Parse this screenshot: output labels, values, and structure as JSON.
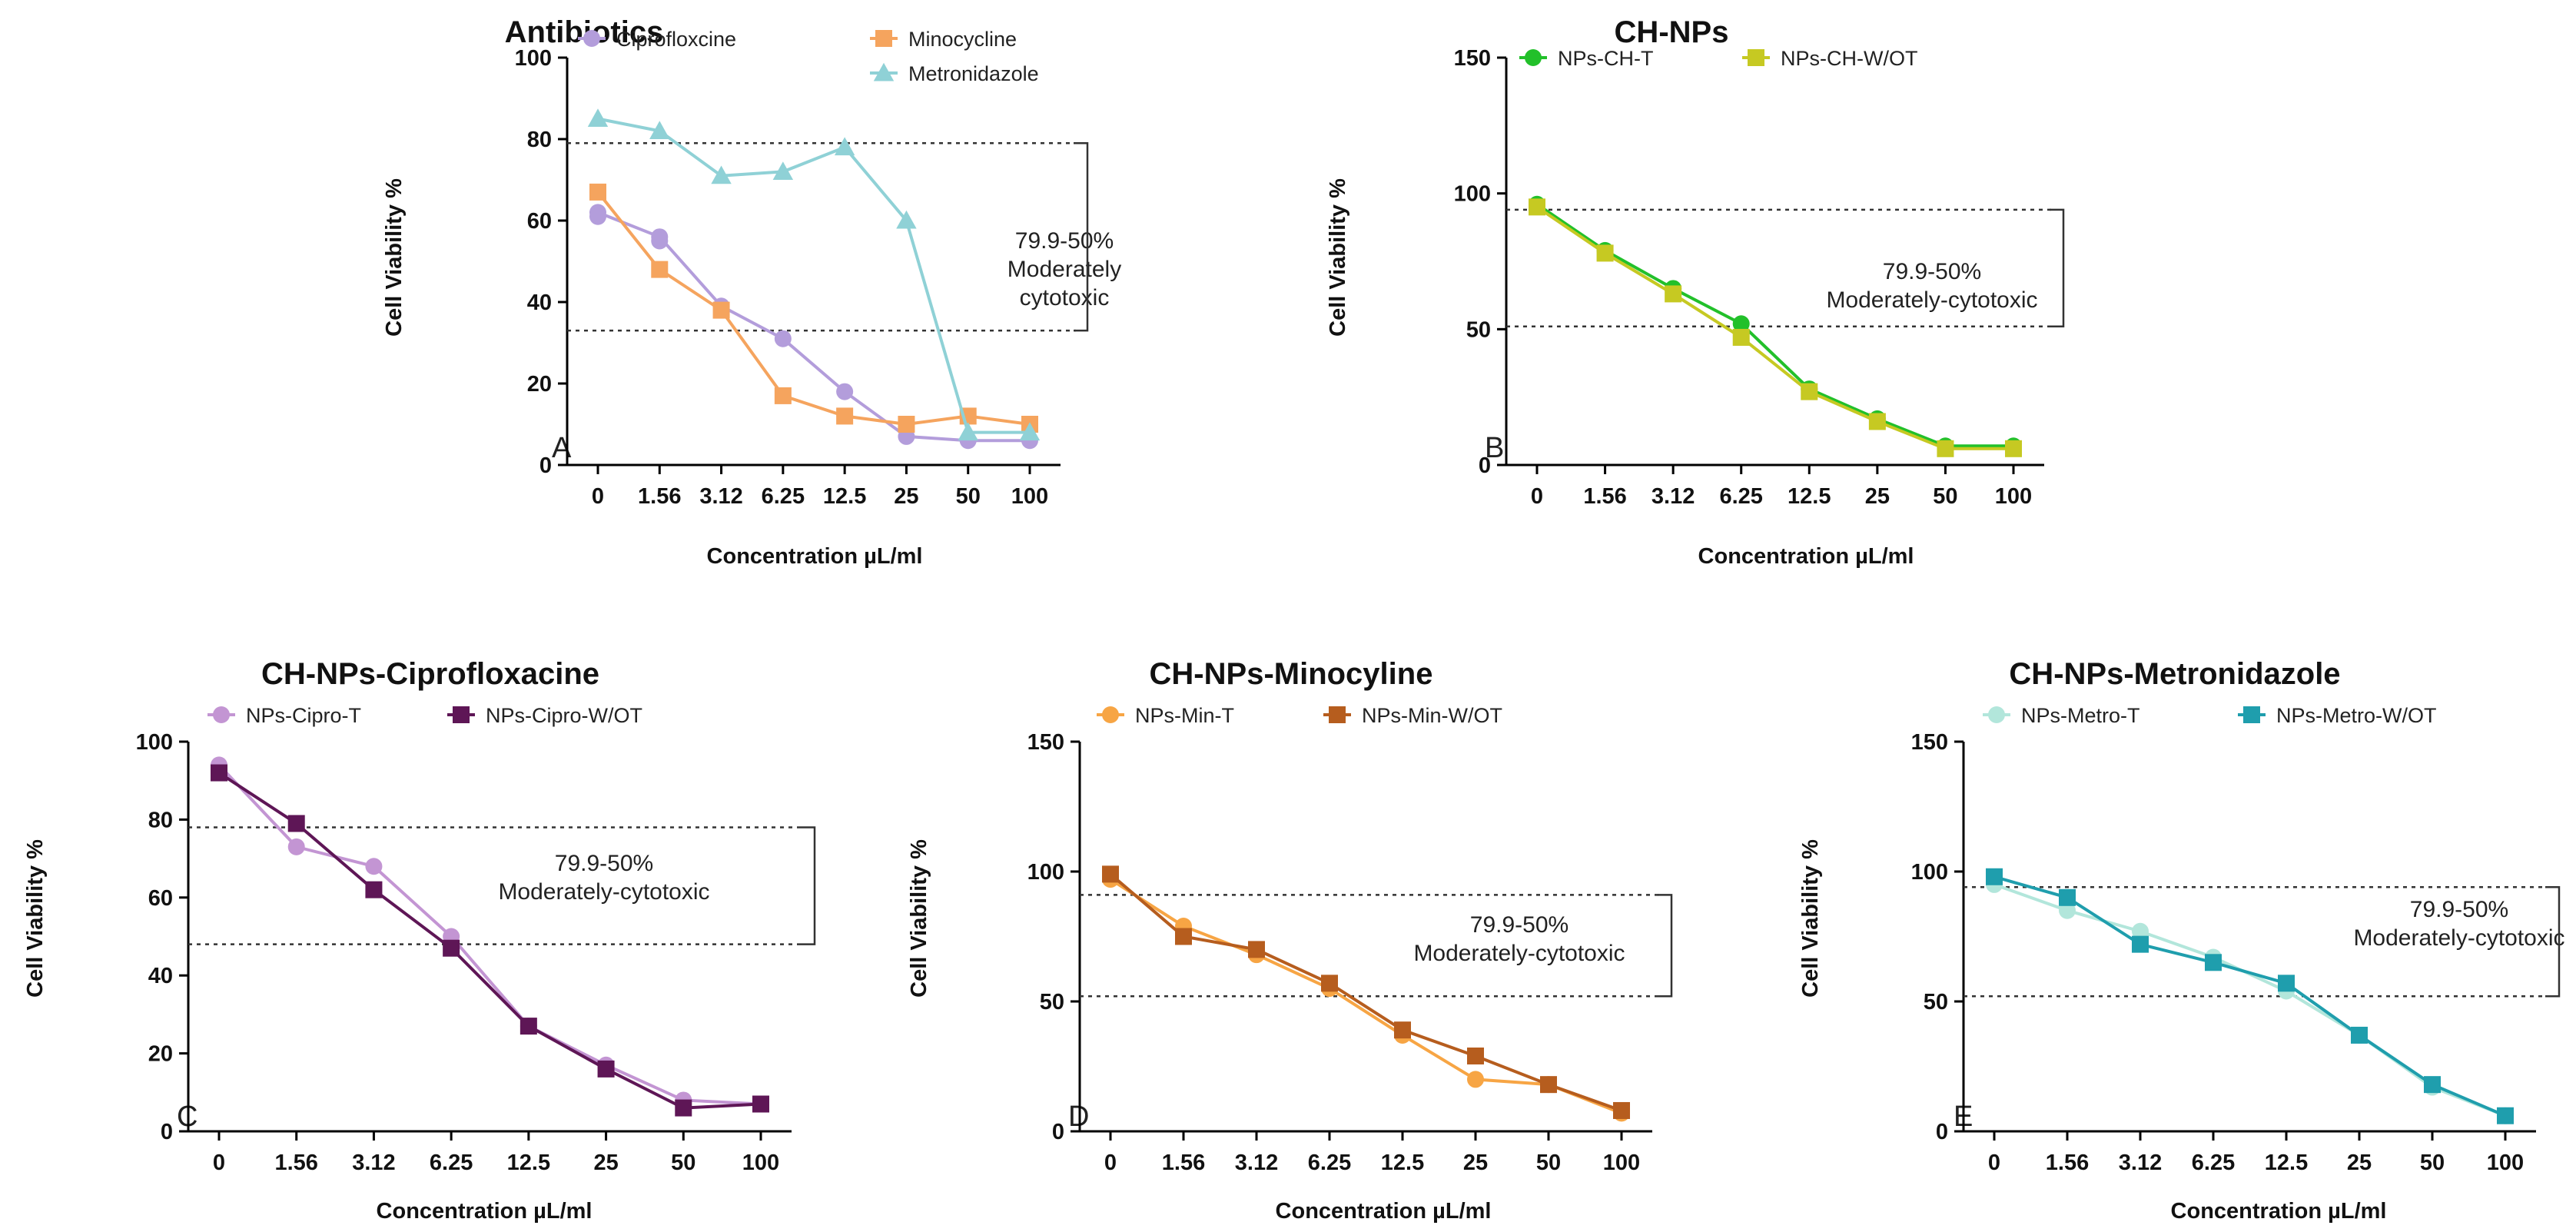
{
  "chart_data": [
    {
      "type": "line",
      "panel_label": "A",
      "title": "Antibiotics",
      "xlabel": "Concentration µL/ml",
      "ylabel": "Cell Viability %",
      "categories": [
        "0",
        "1.56",
        "3.12",
        "6.25",
        "12.5",
        "25",
        "50",
        "100"
      ],
      "ylim": [
        0,
        100
      ],
      "yticks": [
        "0",
        "20",
        "40",
        "60",
        "80",
        "100"
      ],
      "band": [
        79,
        33
      ],
      "annotation": [
        "79.9-50%",
        "Moderately",
        "cytotoxic"
      ],
      "series": [
        {
          "name": "Ciprofloxcine",
          "color": "#b39ddb",
          "marker": "circle",
          "values": [
            62,
            56,
            39,
            31,
            18,
            7,
            6,
            6
          ],
          "values_b": [
            61,
            55
          ]
        },
        {
          "name": "Minocycline",
          "color": "#f5a45e",
          "marker": "square",
          "values": [
            67,
            48,
            38,
            17,
            12,
            10,
            12,
            10
          ]
        },
        {
          "name": "Metronidazole",
          "color": "#8fd1d6",
          "marker": "triangle",
          "values": [
            85,
            82,
            71,
            72,
            78,
            60,
            8,
            8
          ]
        }
      ]
    },
    {
      "type": "line",
      "panel_label": "B",
      "title": "CH-NPs",
      "xlabel": "Concentration µL/ml",
      "ylabel": "Cell Viability %",
      "categories": [
        "0",
        "1.56",
        "3.12",
        "6.25",
        "12.5",
        "25",
        "50",
        "100"
      ],
      "ylim": [
        0,
        150
      ],
      "yticks": [
        "0",
        "50",
        "100",
        "150"
      ],
      "band": [
        94,
        51
      ],
      "annotation": [
        "79.9-50%",
        "Moderately-cytotoxic"
      ],
      "series": [
        {
          "name": "NPs-CH-T",
          "color": "#22c02a",
          "marker": "circle",
          "values": [
            96,
            79,
            65,
            52,
            28,
            17,
            7,
            7
          ]
        },
        {
          "name": "NPs-CH-W/OT",
          "color": "#c6c922",
          "marker": "square",
          "values": [
            95,
            78,
            63,
            47,
            27,
            16,
            6,
            6
          ]
        }
      ]
    },
    {
      "type": "line",
      "panel_label": "C",
      "title": "CH-NPs-Ciprofloxacine",
      "xlabel": "Concentration µL/ml",
      "ylabel": "Cell Viability %",
      "categories": [
        "0",
        "1.56",
        "3.12",
        "6.25",
        "12.5",
        "25",
        "50",
        "100"
      ],
      "ylim": [
        0,
        100
      ],
      "yticks": [
        "0",
        "20",
        "40",
        "60",
        "80",
        "100"
      ],
      "band": [
        78,
        48
      ],
      "annotation": [
        "79.9-50%",
        "Moderately-cytotoxic"
      ],
      "series": [
        {
          "name": "NPs-Cipro-T",
          "color": "#c395d3",
          "marker": "circle",
          "values": [
            94,
            73,
            68,
            50,
            27,
            17,
            8,
            7
          ]
        },
        {
          "name": "NPs-Cipro-W/OT",
          "color": "#5e1656",
          "marker": "square",
          "values": [
            92,
            79,
            62,
            47,
            27,
            16,
            6,
            7
          ]
        }
      ]
    },
    {
      "type": "line",
      "panel_label": "D",
      "title": "CH-NPs-Minocyline",
      "xlabel": "Concentration µL/ml",
      "ylabel": "Cell Viability %",
      "categories": [
        "0",
        "1.56",
        "3.12",
        "6.25",
        "12.5",
        "25",
        "50",
        "100"
      ],
      "ylim": [
        0,
        150
      ],
      "yticks": [
        "0",
        "50",
        "100",
        "150"
      ],
      "band": [
        91,
        52
      ],
      "annotation": [
        "79.9-50%",
        "Moderately-cytotoxic"
      ],
      "series": [
        {
          "name": "NPs-Min-T",
          "color": "#f7a544",
          "marker": "circle",
          "values": [
            97,
            79,
            68,
            55,
            37,
            20,
            18,
            7
          ]
        },
        {
          "name": "NPs-Min-W/OT",
          "color": "#b65d1e",
          "marker": "square",
          "values": [
            99,
            75,
            70,
            57,
            39,
            29,
            18,
            8
          ]
        }
      ]
    },
    {
      "type": "line",
      "panel_label": "E",
      "title": "CH-NPs-Metronidazole",
      "xlabel": "Concentration µL/ml",
      "ylabel": "Cell Viability %",
      "categories": [
        "0",
        "1.56",
        "3.12",
        "6.25",
        "12.5",
        "25",
        "50",
        "100"
      ],
      "ylim": [
        0,
        150
      ],
      "yticks": [
        "0",
        "50",
        "100",
        "150"
      ],
      "band": [
        94,
        52
      ],
      "annotation": [
        "79.9-50%",
        "Moderately-cytotoxic"
      ],
      "series": [
        {
          "name": "NPs-Metro-T",
          "color": "#b2e6db",
          "marker": "circle",
          "values": [
            95,
            85,
            77,
            67,
            54,
            37,
            17,
            6
          ]
        },
        {
          "name": "NPs-Metro-W/OT",
          "color": "#1f9ead",
          "marker": "square",
          "values": [
            98,
            90,
            72,
            65,
            57,
            37,
            18,
            6
          ]
        }
      ]
    }
  ]
}
